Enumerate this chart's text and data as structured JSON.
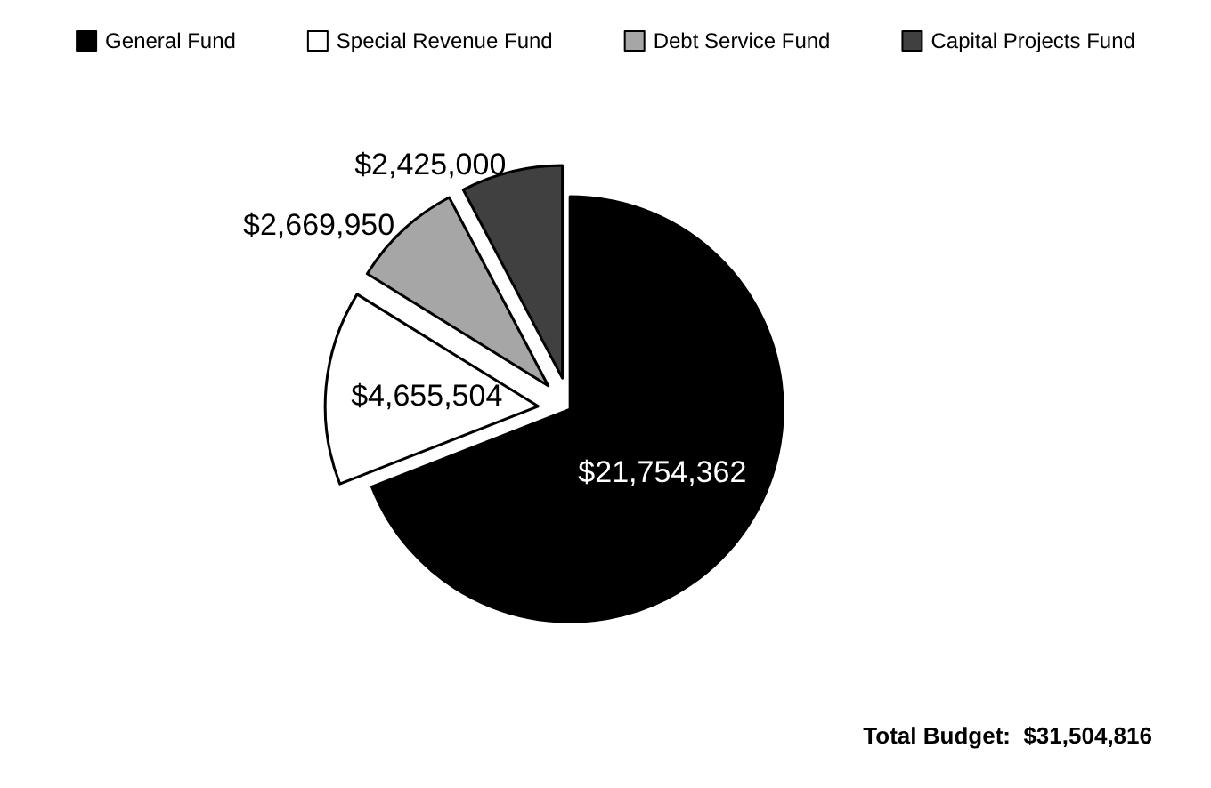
{
  "chart_data": {
    "type": "pie",
    "categories": [
      "General Fund",
      "Special Revenue Fund",
      "Debt Service Fund",
      "Capital Projects Fund"
    ],
    "values": [
      21754362,
      4655504,
      2669950,
      2425000
    ],
    "value_labels": [
      "$21,754,362",
      "$4,655,504",
      "$2,669,950",
      "$2,425,000"
    ],
    "colors": [
      "#000000",
      "#ffffff",
      "#a6a6a6",
      "#404040"
    ],
    "legend": "top",
    "annotations": [
      "Total Budget:  $31,504,816"
    ]
  }
}
